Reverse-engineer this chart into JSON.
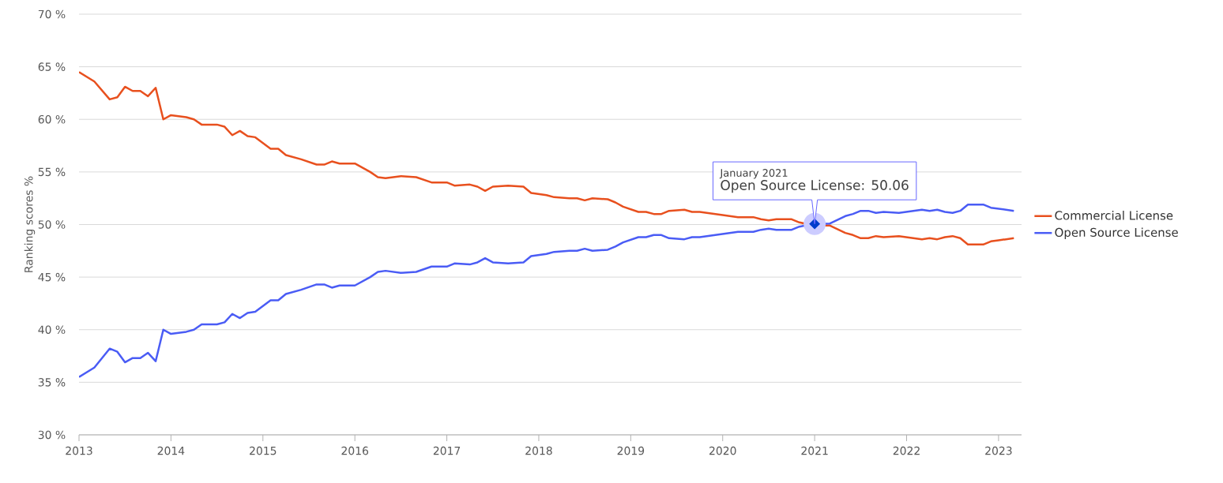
{
  "chart_data": {
    "type": "line",
    "ylabel": "Ranking scores %",
    "x": [
      "2013-01",
      "2013-03",
      "2013-05",
      "2013-06",
      "2013-07",
      "2013-08",
      "2013-09",
      "2013-10",
      "2013-11",
      "2013-12",
      "2014-01",
      "2014-03",
      "2014-04",
      "2014-05",
      "2014-07",
      "2014-08",
      "2014-09",
      "2014-10",
      "2014-11",
      "2014-12",
      "2015-02",
      "2015-03",
      "2015-04",
      "2015-06",
      "2015-08",
      "2015-09",
      "2015-10",
      "2015-11",
      "2016-01",
      "2016-03",
      "2016-04",
      "2016-05",
      "2016-07",
      "2016-09",
      "2016-11",
      "2017-01",
      "2017-02",
      "2017-04",
      "2017-05",
      "2017-06",
      "2017-07",
      "2017-09",
      "2017-11",
      "2017-12",
      "2018-02",
      "2018-03",
      "2018-05",
      "2018-06",
      "2018-07",
      "2018-08",
      "2018-10",
      "2018-11",
      "2018-12",
      "2019-02",
      "2019-03",
      "2019-04",
      "2019-05",
      "2019-06",
      "2019-08",
      "2019-09",
      "2019-10",
      "2020-01",
      "2020-03",
      "2020-05",
      "2020-06",
      "2020-07",
      "2020-08",
      "2020-10",
      "2020-11",
      "2021-01",
      "2021-03",
      "2021-05",
      "2021-06",
      "2021-07",
      "2021-08",
      "2021-09",
      "2021-10",
      "2021-12",
      "2022-01",
      "2022-03",
      "2022-04",
      "2022-05",
      "2022-06",
      "2022-07",
      "2022-08",
      "2022-09",
      "2022-11",
      "2022-12",
      "2023-01",
      "2023-03"
    ],
    "series": [
      {
        "name": "Commercial License",
        "color": "#e8501e",
        "values": [
          64.5,
          63.6,
          61.9,
          62.1,
          63.1,
          62.7,
          62.7,
          62.2,
          63.0,
          60.0,
          60.4,
          60.2,
          60.0,
          59.5,
          59.5,
          59.3,
          58.5,
          58.9,
          58.4,
          58.3,
          57.2,
          57.2,
          56.6,
          56.2,
          55.7,
          55.7,
          56.0,
          55.8,
          55.8,
          55.0,
          54.5,
          54.4,
          54.6,
          54.5,
          54.0,
          54.0,
          53.7,
          53.8,
          53.6,
          53.2,
          53.6,
          53.7,
          53.6,
          53.0,
          52.8,
          52.6,
          52.5,
          52.5,
          52.3,
          52.5,
          52.4,
          52.1,
          51.7,
          51.2,
          51.2,
          51.0,
          51.0,
          51.3,
          51.4,
          51.2,
          51.2,
          50.9,
          50.7,
          50.7,
          50.5,
          50.4,
          50.5,
          50.5,
          50.2,
          49.9,
          49.9,
          49.2,
          49.0,
          48.7,
          48.7,
          48.9,
          48.8,
          48.9,
          48.8,
          48.6,
          48.7,
          48.6,
          48.8,
          48.9,
          48.7,
          48.1,
          48.1,
          48.4,
          48.5,
          48.7
        ]
      },
      {
        "name": "Open Source License",
        "color": "#4a5cf5",
        "values": [
          35.5,
          36.4,
          38.2,
          37.9,
          36.9,
          37.3,
          37.3,
          37.8,
          37.0,
          40.0,
          39.6,
          39.8,
          40.0,
          40.5,
          40.5,
          40.7,
          41.5,
          41.1,
          41.6,
          41.7,
          42.8,
          42.8,
          43.4,
          43.8,
          44.3,
          44.3,
          44.0,
          44.2,
          44.2,
          45.0,
          45.5,
          45.6,
          45.4,
          45.5,
          46.0,
          46.0,
          46.3,
          46.2,
          46.4,
          46.8,
          46.4,
          46.3,
          46.4,
          47.0,
          47.2,
          47.4,
          47.5,
          47.5,
          47.7,
          47.5,
          47.6,
          47.9,
          48.3,
          48.8,
          48.8,
          49.0,
          49.0,
          48.7,
          48.6,
          48.8,
          48.8,
          49.1,
          49.3,
          49.3,
          49.5,
          49.6,
          49.5,
          49.5,
          49.8,
          50.06,
          50.1,
          50.8,
          51.0,
          51.3,
          51.3,
          51.1,
          51.2,
          51.1,
          51.2,
          51.4,
          51.3,
          51.4,
          51.2,
          51.1,
          51.3,
          51.9,
          51.9,
          51.6,
          51.5,
          51.3
        ]
      }
    ],
    "xlim": [
      "2013-01",
      "2023-04"
    ],
    "xticks": [
      "2013",
      "2014",
      "2015",
      "2016",
      "2017",
      "2018",
      "2019",
      "2020",
      "2021",
      "2022",
      "2023"
    ],
    "ylim": [
      30,
      70
    ],
    "yticks": [
      {
        "value": 30,
        "label": "30 %"
      },
      {
        "value": 35,
        "label": "35 %"
      },
      {
        "value": 40,
        "label": "40 %"
      },
      {
        "value": 45,
        "label": "45 %"
      },
      {
        "value": 50,
        "label": "50 %"
      },
      {
        "value": 55,
        "label": "55 %"
      },
      {
        "value": 60,
        "label": "60 %"
      },
      {
        "value": 65,
        "label": "65 %"
      },
      {
        "value": 70,
        "label": "70 %"
      }
    ],
    "grid": "y",
    "legend": "right",
    "marker": "none",
    "line_style": "solid",
    "annotations": [
      "January 2021",
      {
        "text": "Open Source License: 50.06",
        "x": "2021-01",
        "y": 50.06
      }
    ]
  }
}
